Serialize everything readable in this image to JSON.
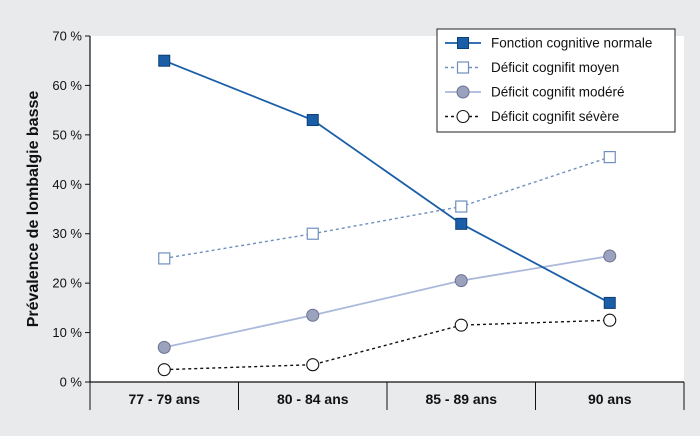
{
  "chart_data": {
    "type": "line",
    "ylabel": "Prévalence de lombalgie basse",
    "ylim": [
      0,
      70
    ],
    "yticks": [
      {
        "value": 0,
        "label": "0 %"
      },
      {
        "value": 10,
        "label": "10 %"
      },
      {
        "value": 20,
        "label": "20 %"
      },
      {
        "value": 30,
        "label": "30 %"
      },
      {
        "value": 40,
        "label": "40 %"
      },
      {
        "value": 50,
        "label": "50 %"
      },
      {
        "value": 60,
        "label": "60 %"
      },
      {
        "value": 70,
        "label": "70 %"
      }
    ],
    "categories": [
      "77 - 79 ans",
      "80 - 84 ans",
      "85 - 89 ans",
      "90 ans"
    ],
    "grid": false,
    "legend_position": "top-right",
    "series": [
      {
        "name": "Fonction cognitive normale",
        "values": [
          65,
          53,
          32,
          16
        ],
        "color": "#1a5ea8",
        "line": "solid",
        "marker": "filled-square"
      },
      {
        "name": "Déficit cognifit moyen",
        "values": [
          25,
          30,
          35.5,
          45.5
        ],
        "color": "#6f8fbf",
        "line": "dashed",
        "marker": "open-square"
      },
      {
        "name": "Déficit cognifit modéré",
        "values": [
          7,
          13.5,
          20.5,
          25.5
        ],
        "color": "#a9b8db",
        "line": "solid",
        "marker": "grey-circle"
      },
      {
        "name": "Déficit cognifit sévère",
        "values": [
          2.5,
          3.5,
          11.5,
          12.5
        ],
        "color": "#111111",
        "line": "dashed",
        "marker": "open-circle"
      }
    ]
  }
}
